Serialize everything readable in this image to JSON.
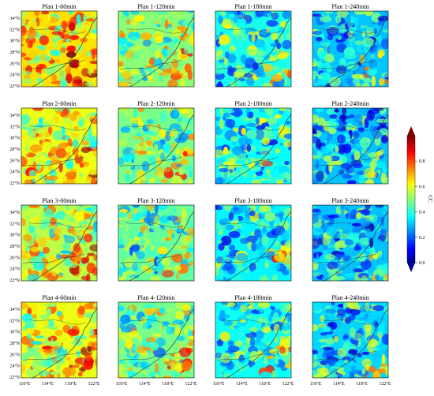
{
  "figure": {
    "rows": [
      [
        "Plan 1-60min",
        "Plan 1-120min",
        "Plan 1-180min",
        "Plan 1-240min"
      ],
      [
        "Plan 2-60min",
        "Plan 2-120min",
        "Plan 2-180min",
        "Plan 2-240min"
      ],
      [
        "Plan 3-60min",
        "Plan 3-120min",
        "Plan 3-180min",
        "Plan 3-240min"
      ],
      [
        "Plan 4-60min",
        "Plan 4-120min",
        "Plan 4-180min",
        "Plan 4-240min"
      ]
    ],
    "lat_ticks": [
      "34°N",
      "32°N",
      "30°N",
      "28°N",
      "26°N",
      "24°N",
      "22°N"
    ],
    "lon_ticks": [
      "110°E",
      "114°E",
      "118°E",
      "122°E"
    ],
    "colorbar": {
      "label": "CC",
      "ticks": [
        "0.8",
        "0.6",
        "0.4",
        "0.2",
        "0.0"
      ],
      "range": [
        0.0,
        1.0
      ],
      "colormap": "jet",
      "colors": [
        "#00008f",
        "#0000ff",
        "#00ffff",
        "#ffff00",
        "#ff0000",
        "#800000"
      ]
    },
    "mean_cc_level": [
      [
        0.65,
        0.5,
        0.38,
        0.3
      ],
      [
        0.6,
        0.48,
        0.36,
        0.3
      ],
      [
        0.55,
        0.46,
        0.35,
        0.3
      ],
      [
        0.6,
        0.48,
        0.37,
        0.32
      ]
    ]
  }
}
